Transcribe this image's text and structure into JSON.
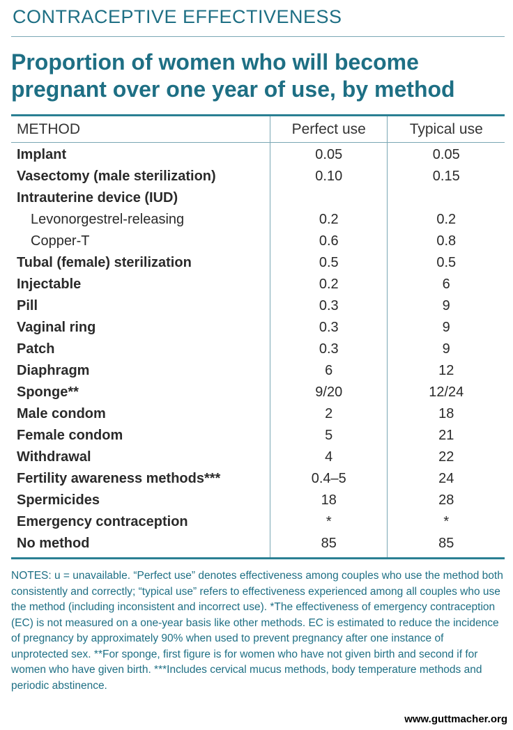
{
  "kicker": "CONTRACEPTIVE EFFECTIVENESS",
  "title": "Proportion of women who will become pregnant over one year of use, by method",
  "table": {
    "headers": {
      "method": "METHOD",
      "perfect": "Perfect use",
      "typical": "Typical use"
    },
    "rows": [
      {
        "method": "Implant",
        "perfect": "0.05",
        "typical": "0.05",
        "sub": false
      },
      {
        "method": "Vasectomy (male sterilization)",
        "perfect": "0.10",
        "typical": "0.15",
        "sub": false
      },
      {
        "method": "Intrauterine device (IUD)",
        "perfect": "",
        "typical": "",
        "sub": false
      },
      {
        "method": "Levonorgestrel-releasing",
        "perfect": "0.2",
        "typical": "0.2",
        "sub": true
      },
      {
        "method": "Copper-T",
        "perfect": "0.6",
        "typical": "0.8",
        "sub": true
      },
      {
        "method": "Tubal (female) sterilization",
        "perfect": "0.5",
        "typical": "0.5",
        "sub": false
      },
      {
        "method": "Injectable",
        "perfect": "0.2",
        "typical": "6",
        "sub": false
      },
      {
        "method": "Pill",
        "perfect": "0.3",
        "typical": "9",
        "sub": false
      },
      {
        "method": "Vaginal ring",
        "perfect": "0.3",
        "typical": "9",
        "sub": false
      },
      {
        "method": "Patch",
        "perfect": "0.3",
        "typical": "9",
        "sub": false
      },
      {
        "method": "Diaphragm",
        "perfect": "6",
        "typical": "12",
        "sub": false
      },
      {
        "method": "Sponge**",
        "perfect": "9/20",
        "typical": "12/24",
        "sub": false
      },
      {
        "method": "Male condom",
        "perfect": "2",
        "typical": "18",
        "sub": false
      },
      {
        "method": "Female condom",
        "perfect": "5",
        "typical": "21",
        "sub": false
      },
      {
        "method": "Withdrawal",
        "perfect": "4",
        "typical": "22",
        "sub": false
      },
      {
        "method": "Fertility awareness methods***",
        "perfect": "0.4–5",
        "typical": "24",
        "sub": false
      },
      {
        "method": "Spermicides",
        "perfect": "18",
        "typical": "28",
        "sub": false
      },
      {
        "method": "Emergency contraception",
        "perfect": "*",
        "typical": "*",
        "sub": false
      },
      {
        "method": "No method",
        "perfect": "85",
        "typical": "85",
        "sub": false
      }
    ]
  },
  "notes": "NOTES: u = unavailable. “Perfect use” denotes effectiveness among couples who use the method both consistently and correctly; “typical use” refers to effectiveness experienced among all couples who use the method (including inconsistent and incorrect use). *The effectiveness of emergency contraception (EC) is not measured on a one-year basis like other methods. EC is estimated to reduce the incidence of pregnancy by approximately 90% when used to prevent pregnancy after one instance of unprotected sex. **For sponge, first figure is for women who have not given birth and second if for women who have given birth. ***Includes cervical mucus methods, body temperature methods and periodic abstinence.",
  "footer_url": "www.guttmacher.org",
  "colors": {
    "accent": "#1e6f84",
    "rule": "#2a7f93"
  }
}
